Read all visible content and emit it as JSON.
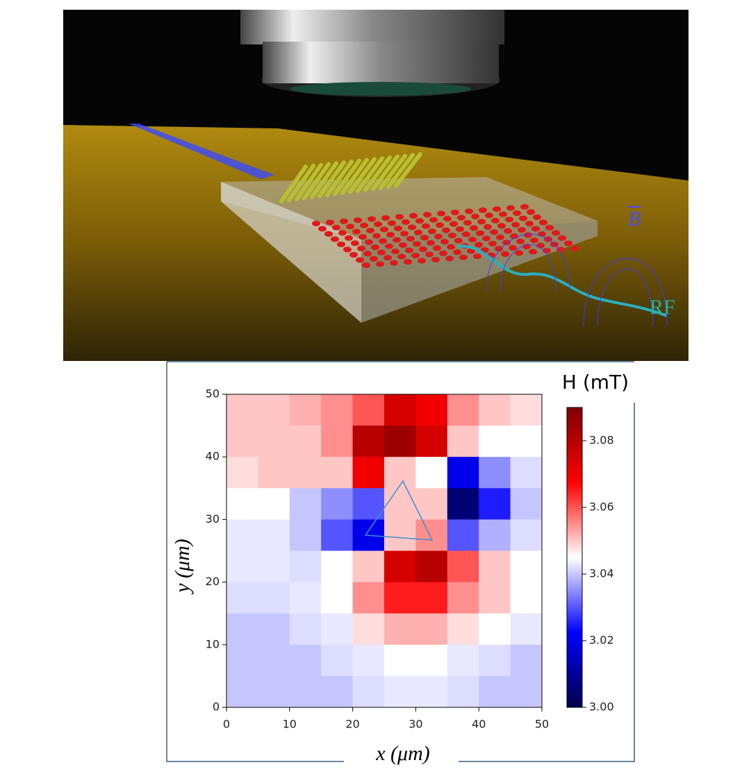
{
  "illustration": {
    "labels": [
      "B",
      "RF"
    ]
  },
  "chart_data": {
    "type": "heatmap",
    "xlabel": "x (μm)",
    "ylabel": "y (μm)",
    "colorbar_label": "H (mT)",
    "xlim": [
      0,
      50
    ],
    "ylim": [
      0,
      50
    ],
    "xticks": [
      0,
      10,
      20,
      30,
      40,
      50
    ],
    "yticks": [
      0,
      10,
      20,
      30,
      40,
      50
    ],
    "xbins": [
      0,
      5,
      10,
      15,
      20,
      25,
      30,
      35,
      40,
      45,
      50
    ],
    "ybins": [
      50,
      45,
      40,
      35,
      30,
      25,
      20,
      15,
      10,
      5,
      0
    ],
    "clim": [
      3.0,
      3.09
    ],
    "cticks": [
      {
        "value": 3,
        "label": "3.00"
      },
      3.02,
      3.04,
      3.06,
      3.08
    ],
    "colormap": "seismic",
    "values": [
      [
        3.05,
        3.05,
        3.052,
        3.055,
        3.06,
        3.075,
        3.07,
        3.055,
        3.05,
        3.048
      ],
      [
        3.05,
        3.05,
        3.05,
        3.055,
        3.08,
        3.085,
        3.075,
        3.05,
        3.045,
        3.045
      ],
      [
        3.048,
        3.05,
        3.05,
        3.05,
        3.07,
        3.05,
        3.045,
        3.02,
        3.035,
        3.042
      ],
      [
        3.045,
        3.045,
        3.04,
        3.035,
        3.03,
        3.05,
        3.05,
        3.005,
        3.025,
        3.04
      ],
      [
        3.043,
        3.043,
        3.04,
        3.03,
        3.02,
        3.05,
        3.055,
        3.03,
        3.038,
        3.042
      ],
      [
        3.043,
        3.043,
        3.042,
        3.045,
        3.05,
        3.075,
        3.08,
        3.06,
        3.05,
        3.045
      ],
      [
        3.042,
        3.042,
        3.043,
        3.045,
        3.055,
        3.065,
        3.065,
        3.055,
        3.05,
        3.045
      ],
      [
        3.04,
        3.04,
        3.042,
        3.043,
        3.048,
        3.052,
        3.052,
        3.048,
        3.045,
        3.043
      ],
      [
        3.04,
        3.04,
        3.04,
        3.042,
        3.043,
        3.045,
        3.045,
        3.043,
        3.042,
        3.04
      ],
      [
        3.04,
        3.04,
        3.04,
        3.04,
        3.042,
        3.043,
        3.043,
        3.042,
        3.04,
        3.04
      ]
    ]
  }
}
